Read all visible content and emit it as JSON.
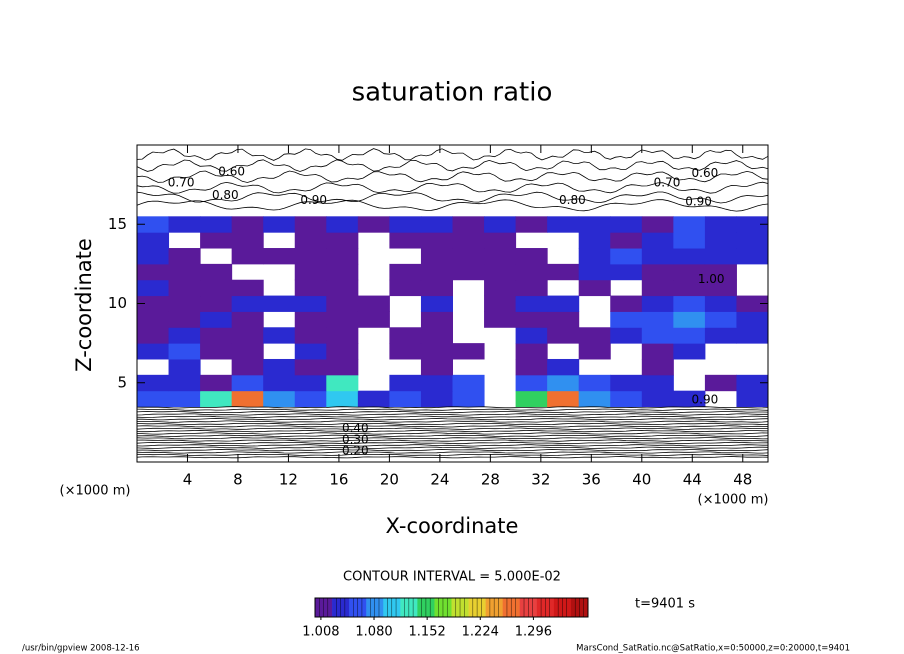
{
  "chart_data": {
    "type": "contour",
    "title": "saturation ratio",
    "x_label": "X-coordinate",
    "y_label": "Z-coordinate",
    "x_unit": "(×1000 m)",
    "y_unit": "(×1000 m)",
    "xlim": [
      0,
      50
    ],
    "ylim": [
      0,
      20
    ],
    "xticks": [
      4,
      8,
      12,
      16,
      20,
      24,
      28,
      32,
      36,
      40,
      44,
      48
    ],
    "yticks": [
      5,
      10,
      15
    ],
    "x": [
      1.25,
      3.75,
      6.25,
      8.75,
      11.25,
      13.75,
      16.25,
      18.75,
      21.25,
      23.75,
      26.25,
      28.75,
      31.25,
      33.75,
      36.25,
      38.75,
      41.25,
      43.75,
      46.25,
      48.75
    ],
    "z": [
      4,
      5,
      6,
      7,
      8,
      9,
      10,
      11,
      12,
      13,
      14,
      15
    ],
    "values": [
      [
        1.05,
        1.06,
        1.12,
        1.26,
        1.08,
        1.05,
        1.1,
        1.04,
        1.05,
        1.04,
        1.06,
        null,
        1.14,
        1.27,
        1.08,
        1.05,
        1.04,
        1.03,
        null,
        1.03
      ],
      [
        1.04,
        1.03,
        1.02,
        1.06,
        1.04,
        1.03,
        1.12,
        null,
        1.03,
        1.04,
        1.05,
        null,
        1.06,
        1.08,
        1.05,
        1.04,
        1.03,
        null,
        1.02,
        1.04
      ],
      [
        null,
        1.03,
        null,
        1.02,
        1.03,
        1.02,
        1.02,
        null,
        null,
        1.02,
        null,
        null,
        1.02,
        1.03,
        null,
        null,
        1.02,
        null,
        null,
        null
      ],
      [
        1.04,
        1.05,
        1.02,
        1.02,
        null,
        1.03,
        1.02,
        null,
        1.02,
        1.02,
        1.02,
        null,
        1.02,
        null,
        1.02,
        null,
        1.02,
        1.03,
        null,
        null
      ],
      [
        1.02,
        1.03,
        1.02,
        1.02,
        1.03,
        1.02,
        1.02,
        null,
        1.02,
        1.02,
        null,
        null,
        1.03,
        1.02,
        1.02,
        1.04,
        1.05,
        1.06,
        1.04,
        1.03
      ],
      [
        1.02,
        1.02,
        1.03,
        1.02,
        null,
        1.02,
        1.02,
        1.02,
        null,
        1.02,
        null,
        1.02,
        1.02,
        1.02,
        null,
        1.05,
        1.06,
        1.07,
        1.05,
        1.04
      ],
      [
        1.02,
        1.02,
        1.02,
        1.03,
        1.04,
        1.03,
        1.02,
        1.02,
        null,
        1.03,
        null,
        1.02,
        1.03,
        1.03,
        null,
        1.02,
        1.03,
        1.05,
        1.04,
        1.02
      ],
      [
        1.03,
        1.02,
        1.02,
        1.02,
        null,
        1.02,
        1.02,
        null,
        1.02,
        1.02,
        null,
        1.02,
        1.02,
        null,
        1.02,
        null,
        1.02,
        1.02,
        1.02,
        null
      ],
      [
        1.02,
        1.02,
        1.02,
        null,
        null,
        1.02,
        1.02,
        null,
        1.02,
        1.02,
        1.02,
        1.02,
        1.02,
        1.02,
        1.04,
        1.03,
        1.02,
        1.02,
        1.02,
        null
      ],
      [
        1.04,
        1.02,
        null,
        1.02,
        1.02,
        1.02,
        1.02,
        null,
        null,
        1.02,
        1.02,
        1.02,
        1.02,
        null,
        1.03,
        1.05,
        1.03,
        1.04,
        1.03,
        1.04
      ],
      [
        1.03,
        null,
        1.02,
        1.02,
        null,
        1.02,
        1.02,
        null,
        1.02,
        1.02,
        1.02,
        1.02,
        null,
        null,
        1.03,
        1.02,
        1.04,
        1.05,
        1.03,
        1.03
      ],
      [
        1.05,
        1.04,
        1.03,
        1.02,
        1.03,
        1.02,
        1.03,
        1.02,
        1.04,
        1.03,
        1.02,
        1.03,
        1.02,
        1.03,
        1.04,
        1.03,
        1.02,
        1.05,
        1.03,
        1.04
      ]
    ],
    "contour_labels": [
      {
        "value": 0.7,
        "label": "0.70",
        "x": 3.5,
        "z": 17.6
      },
      {
        "value": 0.6,
        "label": "0.60",
        "x": 7.5,
        "z": 18.3
      },
      {
        "value": 0.8,
        "label": "0.80",
        "x": 7,
        "z": 16.8
      },
      {
        "value": 0.9,
        "label": "0.90",
        "x": 14,
        "z": 16.5
      },
      {
        "value": 0.8,
        "label": "0.80",
        "x": 34.5,
        "z": 16.5
      },
      {
        "value": 0.7,
        "label": "0.70",
        "x": 42,
        "z": 17.6
      },
      {
        "value": 0.6,
        "label": "0.60",
        "x": 45,
        "z": 18.2
      },
      {
        "value": 0.9,
        "label": "0.90",
        "x": 44.5,
        "z": 16.4
      },
      {
        "value": 1,
        "label": "1.00",
        "x": 45.5,
        "z": 11.5
      },
      {
        "value": 0.9,
        "label": "0.90",
        "x": 45,
        "z": 3.9
      },
      {
        "value": 0.4,
        "label": "0.40",
        "x": 17.3,
        "z": 2.1
      },
      {
        "value": 0.3,
        "label": "0.30",
        "x": 17.3,
        "z": 1.4
      },
      {
        "value": 0.2,
        "label": "0.20",
        "x": 17.3,
        "z": 0.7
      }
    ],
    "contour_interval": "CONTOUR INTERVAL = 5.000E-02",
    "time_label": "t=9401 s",
    "colorbar": {
      "lim": [
        1.0,
        1.37
      ],
      "ticks": [
        1.008,
        {
          "value": 1.08,
          "label": "1.080"
        },
        1.152,
        1.224,
        1.296
      ],
      "colors": [
        "#5a1a9a",
        "#2a2ad0",
        "#3050f0",
        "#3090f0",
        "#30c8f0",
        "#40e8c0",
        "#30d060",
        "#70e030",
        "#c0e030",
        "#e8d030",
        "#f0a030",
        "#f07030",
        "#e84040",
        "#e02828",
        "#d01818",
        "#b01010"
      ]
    },
    "footer_left": "/usr/bin/gpview  2008-12-16",
    "footer_right": "MarsCond_SatRatio.nc@SatRatio,x=0:50000,z=0:20000,t=9401"
  }
}
